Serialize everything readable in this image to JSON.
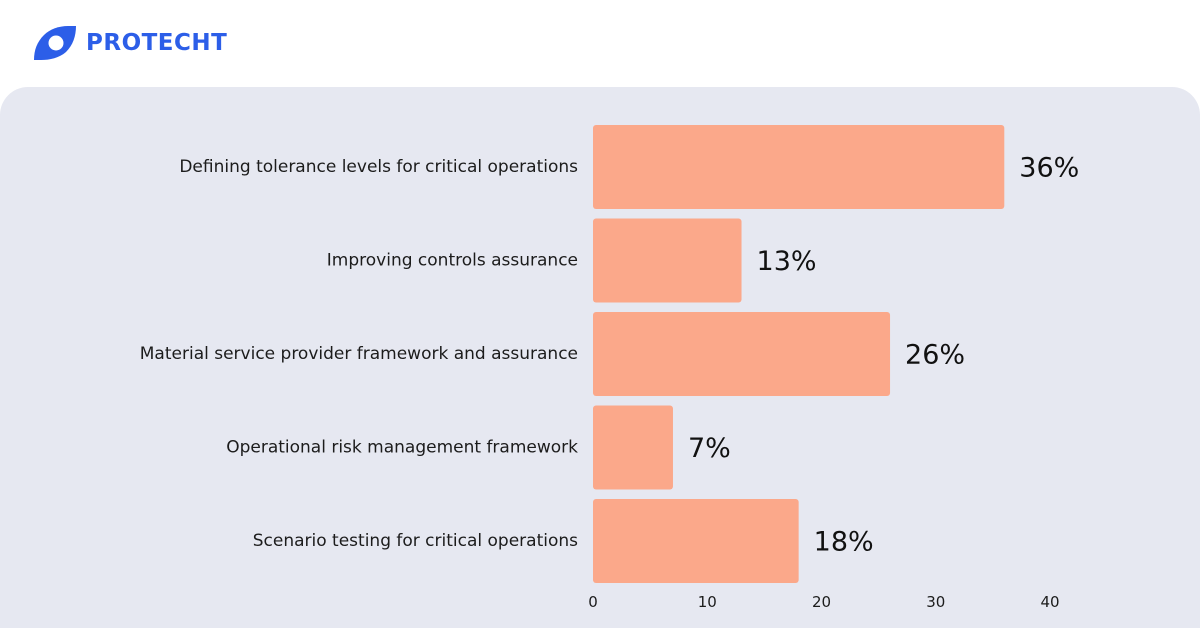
{
  "brand": {
    "name": "PROTECHT",
    "color": "#2c5ee8",
    "icon": "protecht-logo-icon"
  },
  "chart_data": {
    "type": "bar",
    "orientation": "horizontal",
    "title": "",
    "xlabel": "",
    "ylabel": "",
    "categories": [
      "Defining tolerance levels for critical operations",
      "Improving controls assurance",
      "Material service provider framework and assurance",
      "Operational risk management framework",
      "Scenario testing for critical operations"
    ],
    "values": [
      36,
      13,
      26,
      7,
      18
    ],
    "value_labels": [
      "36%",
      "13%",
      "26%",
      "7%",
      "18%"
    ],
    "xlim": [
      0,
      40
    ],
    "x_ticks": [
      0,
      10,
      20,
      30,
      40
    ],
    "grid": false,
    "bar_color": "#fba88a",
    "background_color": "#e6e8f1"
  }
}
